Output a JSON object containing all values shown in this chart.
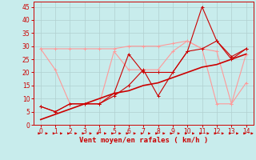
{
  "title": "",
  "xlabel": "Vent moyen/en rafales ( km/h )",
  "background_color": "#c8ecec",
  "grid_color": "#b0d0d0",
  "xlim": [
    -0.5,
    14.5
  ],
  "ylim": [
    0,
    47
  ],
  "yticks": [
    0,
    5,
    10,
    15,
    20,
    25,
    30,
    35,
    40,
    45
  ],
  "xticks": [
    0,
    1,
    2,
    3,
    4,
    5,
    6,
    7,
    8,
    9,
    10,
    11,
    12,
    13,
    14
  ],
  "x": [
    0,
    1,
    2,
    3,
    4,
    5,
    6,
    7,
    8,
    9,
    10,
    11,
    12,
    13,
    14
  ],
  "line_dark1_y": [
    7,
    5,
    8,
    8,
    8,
    11,
    15,
    21,
    11,
    20,
    28,
    29,
    32,
    26,
    29
  ],
  "line_dark2_y": [
    7,
    5,
    8,
    8,
    8,
    12,
    27,
    20,
    20,
    20,
    28,
    45,
    32,
    25,
    29
  ],
  "line_light1_y": [
    29,
    21,
    8,
    8,
    8,
    28,
    21,
    21,
    21,
    28,
    32,
    29,
    28,
    8,
    16
  ],
  "line_light2_y": [
    29,
    29,
    29,
    29,
    29,
    29,
    30,
    30,
    30,
    31,
    32,
    29,
    8,
    8,
    27
  ],
  "trend_y": [
    2,
    4,
    6,
    8,
    10,
    12,
    13,
    15,
    16,
    18,
    20,
    22,
    23,
    25,
    27
  ],
  "dark_color": "#cc0000",
  "light_color": "#ff9999",
  "trend_color": "#cc0000",
  "marker_size": 2.5,
  "xlabel_color": "#cc0000",
  "tick_color": "#cc0000",
  "axis_color": "#cc0000"
}
